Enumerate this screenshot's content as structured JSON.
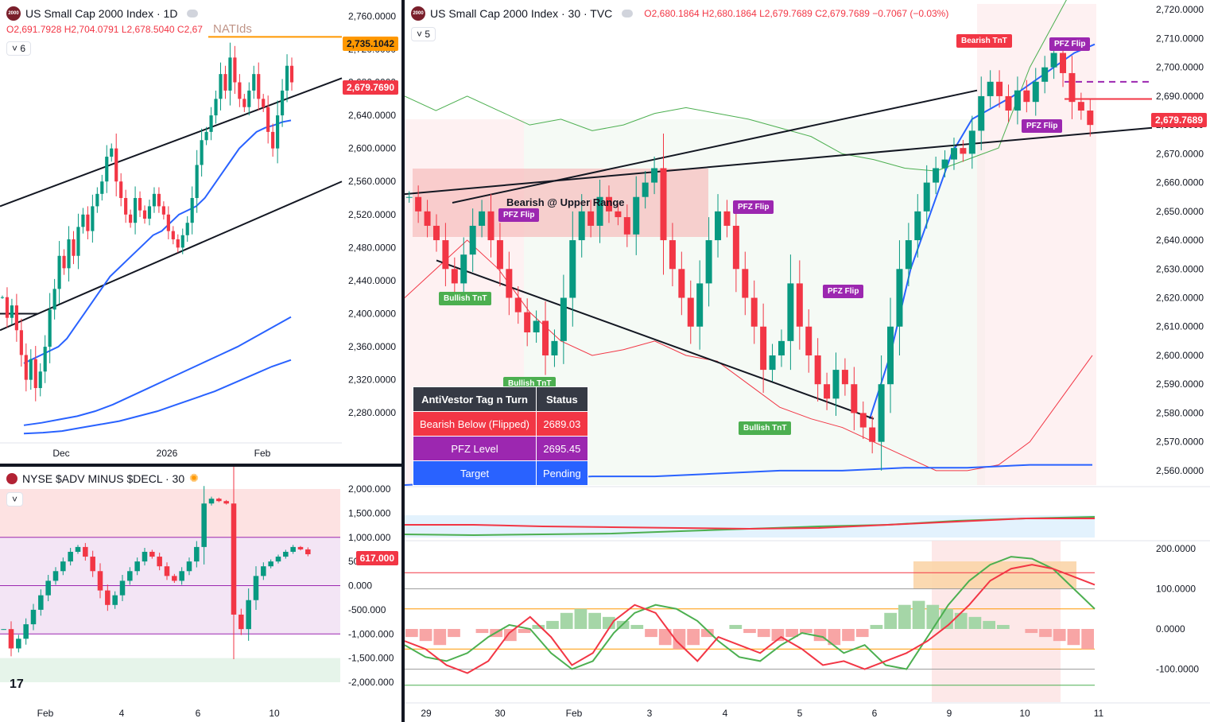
{
  "daily": {
    "title": "US Small Cap 2000 Index · 1D",
    "logo_text": "2000",
    "ohlc": {
      "o": "O2,691.7928",
      "h": "H2,704.0791",
      "l": "L2,678.5040",
      "c": "C2,67"
    },
    "overlay_text": "NATIds",
    "interval_btn": "6",
    "price_axis": [
      "2,760.0000",
      "2,720.0000",
      "2,680.0000",
      "2,640.0000",
      "2,600.0000",
      "2,560.0000",
      "2,520.0000",
      "2,480.0000",
      "2,440.0000",
      "2,400.0000",
      "2,360.0000",
      "2,320.0000",
      "2,280.0000"
    ],
    "time_axis": [
      "Dec",
      "2026",
      "Feb"
    ],
    "label_orange": "2,735.1042",
    "label_red": "2,679.7690",
    "colors": {
      "orange": "#ff9800",
      "red": "#f23645",
      "blue": "#2962ff"
    }
  },
  "adv": {
    "title": "NYSE $ADV MINUS $DECL · 30",
    "price_axis": [
      "2,000.000",
      "1,500.000",
      "1,000.000",
      "500.000",
      "0.000",
      "-500.000",
      "-1,000.000",
      "-1,500.000",
      "-2,000.000"
    ],
    "time_axis": [
      "Feb",
      "4",
      "6",
      "10"
    ],
    "label_red": "617.000"
  },
  "m30": {
    "title": "US Small Cap 2000 Index · 30 · TVC",
    "logo_text": "2000",
    "ohlc": {
      "o": "O2,680.1864",
      "h": "H2,680.1864",
      "l": "L2,679.7689",
      "c": "C2,679.7689",
      "chg": "−0.7067 (−0.03%)"
    },
    "interval_btn": "5",
    "price_axis": [
      "2,720.0000",
      "2,710.0000",
      "2,700.0000",
      "2,690.0000",
      "2,680.0000",
      "2,670.0000",
      "2,660.0000",
      "2,650.0000",
      "2,640.0000",
      "2,630.0000",
      "2,620.0000",
      "2,610.0000",
      "2,600.0000",
      "2,590.0000",
      "2,580.0000",
      "2,570.0000",
      "2,560.0000"
    ],
    "osc_axis": [
      "200.0000",
      "100.0000",
      "0.0000",
      "-100.0000"
    ],
    "time_axis": [
      "29",
      "30",
      "Feb",
      "3",
      "4",
      "5",
      "6",
      "9",
      "10",
      "11"
    ],
    "label_red": "2,679.7689",
    "tags": {
      "bearish_upper": "Bearish @ Upper Range",
      "pfz_flip": "PFZ Flip",
      "bullish_tnt": "Bullish TnT",
      "bearish_tnt": "Bearish TnT"
    },
    "table": {
      "header": [
        "AntiVestor Tag n Turn",
        "Status"
      ],
      "rows": [
        {
          "label": "Bearish Below (Flipped)",
          "value": "2689.03",
          "color": "#f23645"
        },
        {
          "label": "PFZ Level",
          "value": "2695.45",
          "color": "#9c27b0"
        },
        {
          "label": "Target",
          "value": "Pending",
          "color": "#2962ff"
        }
      ]
    }
  },
  "chart_data": [
    {
      "type": "candlestick",
      "title": "US Small Cap 2000 Index · 1D",
      "ylim": [
        2260,
        2770
      ],
      "close": [
        2420,
        2395,
        2410,
        2380,
        2350,
        2320,
        2345,
        2310,
        2330,
        2360,
        2405,
        2430,
        2470,
        2455,
        2490,
        2470,
        2505,
        2520,
        2500,
        2530,
        2545,
        2560,
        2590,
        2600,
        2560,
        2540,
        2520,
        2510,
        2540,
        2525,
        2515,
        2530,
        2545,
        2530,
        2520,
        2500,
        2490,
        2480,
        2495,
        2510,
        2540,
        2580,
        2610,
        2620,
        2640,
        2660,
        2690,
        2670,
        2710,
        2680,
        2660,
        2650,
        2670,
        2690,
        2660,
        2650,
        2620,
        2600,
        2640,
        2670,
        2700,
        2680
      ],
      "ma_fast": [
        2340,
        2345,
        2350,
        2355,
        2360,
        2370,
        2385,
        2400,
        2415,
        2430,
        2445,
        2455,
        2465,
        2475,
        2485,
        2495,
        2500,
        2510,
        2520,
        2525,
        2530,
        2540,
        2555,
        2570,
        2585,
        2600,
        2610,
        2620,
        2625,
        2628,
        2632,
        2634
      ],
      "ma_mid": [
        2265,
        2268,
        2272,
        2276,
        2282,
        2290,
        2300,
        2310,
        2320,
        2330,
        2340,
        2350,
        2360,
        2372,
        2384,
        2396
      ],
      "ma_slow": [
        2255,
        2256,
        2258,
        2262,
        2266,
        2270,
        2276,
        2282,
        2290,
        2298,
        2306,
        2316,
        2326,
        2336,
        2344
      ]
    },
    {
      "type": "bar",
      "title": "NYSE $ADV MINUS $DECL · 30",
      "ylim": [
        -2000,
        2000
      ],
      "values": [
        -900,
        -1300,
        -1100,
        -800,
        -500,
        -200,
        100,
        300,
        500,
        700,
        800,
        600,
        300,
        -100,
        -400,
        -200,
        100,
        300,
        500,
        700,
        600,
        400,
        200,
        100,
        300,
        500,
        800,
        1700,
        1800,
        1750,
        1700,
        -600,
        -900,
        -300,
        200,
        400,
        500,
        600,
        700,
        800,
        750,
        650
      ]
    },
    {
      "type": "candlestick",
      "title": "US Small Cap 2000 Index · 30 · TVC",
      "ylim": [
        2555,
        2722
      ],
      "close": [
        2655,
        2650,
        2645,
        2640,
        2630,
        2625,
        2635,
        2645,
        2650,
        2640,
        2630,
        2620,
        2615,
        2608,
        2612,
        2600,
        2605,
        2620,
        2640,
        2650,
        2645,
        2655,
        2650,
        2648,
        2642,
        2655,
        2660,
        2665,
        2640,
        2630,
        2620,
        2610,
        2625,
        2640,
        2650,
        2645,
        2630,
        2620,
        2610,
        2595,
        2600,
        2605,
        2625,
        2610,
        2600,
        2590,
        2585,
        2595,
        2590,
        2580,
        2575,
        2570,
        2590,
        2610,
        2630,
        2640,
        2650,
        2660,
        2665,
        2668,
        2672,
        2670,
        2678,
        2690,
        2695,
        2690,
        2685,
        2692,
        2688,
        2695,
        2700,
        2705,
        2698,
        2688,
        2685,
        2680
      ]
    }
  ]
}
